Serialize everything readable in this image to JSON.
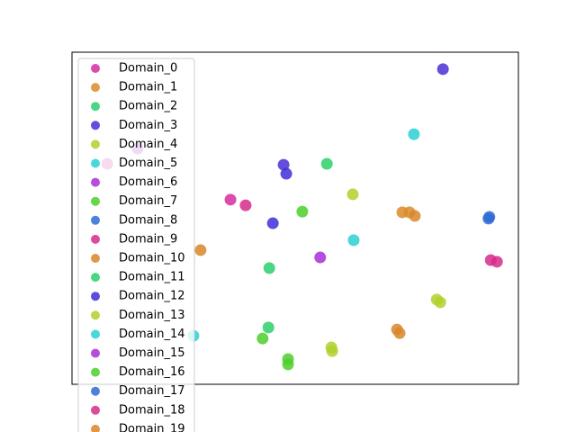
{
  "chart_data": {
    "type": "scatter",
    "xlim": [
      0,
      100
    ],
    "ylim": [
      0,
      100
    ],
    "legend": "upper left",
    "series": [
      {
        "name": "Domain_0",
        "color": "#d62ca0",
        "x": [
          35.5,
          7.9
        ],
        "y": [
          55.6,
          66.4
        ]
      },
      {
        "name": "Domain_1",
        "color": "#d98c2a",
        "x": [
          74.0,
          75.6
        ],
        "y": [
          51.8,
          51.8
        ]
      },
      {
        "name": "Domain_2",
        "color": "#2ccf6e",
        "x": [
          44.2
        ],
        "y": [
          35.0
        ]
      },
      {
        "name": "Domain_3",
        "color": "#4b2fd6",
        "x": [
          83.1,
          47.4
        ],
        "y": [
          94.9,
          66.1
        ]
      },
      {
        "name": "Domain_4",
        "color": "#b0d12a",
        "x": [
          62.9
        ],
        "y": [
          57.2
        ]
      },
      {
        "name": "Domain_5",
        "color": "#2cd0d3",
        "x": [
          76.6,
          63.1
        ],
        "y": [
          75.3,
          43.4
        ]
      },
      {
        "name": "Domain_6",
        "color": "#a82fd6",
        "x": [
          55.6
        ],
        "y": [
          38.2
        ]
      },
      {
        "name": "Domain_7",
        "color": "#4ccf2a",
        "x": [
          48.4,
          48.4,
          51.6
        ],
        "y": [
          6.0,
          7.6,
          52.0
        ]
      },
      {
        "name": "Domain_8",
        "color": "#2f6bd6",
        "x": [
          93.3
        ],
        "y": [
          49.9
        ]
      },
      {
        "name": "Domain_9",
        "color": "#d62c8a",
        "x": [
          93.8,
          95.2
        ],
        "y": [
          37.4,
          36.9
        ]
      },
      {
        "name": "Domain_10",
        "color": "#d9862a",
        "x": [
          72.8,
          73.4
        ],
        "y": [
          16.5,
          15.4
        ]
      },
      {
        "name": "Domain_11",
        "color": "#2ccf6a",
        "x": [
          57.1,
          44.0
        ],
        "y": [
          66.4,
          17.1
        ]
      },
      {
        "name": "Domain_12",
        "color": "#3f2fd6",
        "x": [
          48.0,
          45.0
        ],
        "y": [
          63.4,
          48.5
        ]
      },
      {
        "name": "Domain_13",
        "color": "#b0d12a",
        "x": [
          82.5,
          81.7,
          58.3,
          58.1
        ],
        "y": [
          24.7,
          25.5,
          10.0,
          11.1
        ]
      },
      {
        "name": "Domain_14",
        "color": "#2cd0d3",
        "x": [
          27.2
        ],
        "y": [
          14.6
        ]
      },
      {
        "name": "Domain_15",
        "color": "#a82fd6",
        "x": [
          14.7
        ],
        "y": [
          71.0
        ]
      },
      {
        "name": "Domain_16",
        "color": "#4ccf2a",
        "x": [
          42.7
        ],
        "y": [
          13.8
        ]
      },
      {
        "name": "Domain_17",
        "color": "#2f6bd6",
        "x": [
          93.5
        ],
        "y": [
          50.4
        ]
      },
      {
        "name": "Domain_18",
        "color": "#d62c8a",
        "x": [
          38.9
        ],
        "y": [
          53.9
        ]
      },
      {
        "name": "Domain_19",
        "color": "#d9862a",
        "x": [
          28.8,
          76.8
        ],
        "y": [
          40.4,
          50.7
        ]
      }
    ]
  }
}
